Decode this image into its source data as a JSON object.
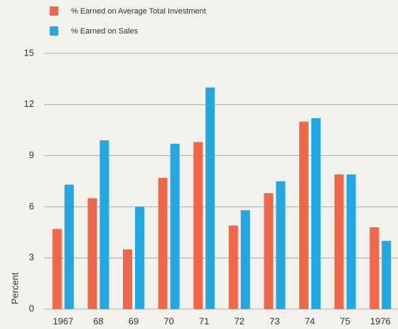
{
  "chart_data": {
    "type": "bar",
    "y_label": "Percent",
    "categories": [
      "1967",
      "68",
      "69",
      "70",
      "71",
      "72",
      "73",
      "74",
      "75",
      "1976"
    ],
    "series": [
      {
        "name": "% Earned on Average Total Investment",
        "color": "#f0684a",
        "values": [
          4.7,
          6.5,
          3.5,
          7.7,
          9.8,
          4.9,
          6.8,
          11.0,
          7.9,
          4.8
        ]
      },
      {
        "name": "% Earned on Sales",
        "color": "#22a7e0",
        "values": [
          7.3,
          9.9,
          6.0,
          9.7,
          13.0,
          5.8,
          7.5,
          11.2,
          7.9,
          4.0
        ]
      }
    ],
    "ylim": [
      0,
      15
    ],
    "yticks": [
      0,
      3,
      6,
      9,
      12,
      15
    ],
    "grid": true
  }
}
